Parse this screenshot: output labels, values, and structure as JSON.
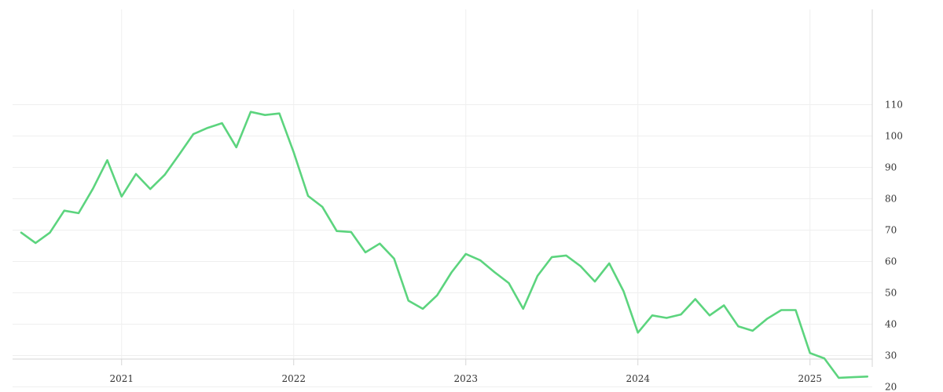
{
  "chart_data": {
    "type": "line",
    "title": "",
    "xlabel": "",
    "ylabel": "",
    "y_axis_position": "right",
    "grid": true,
    "xlim": [
      "2020-06",
      "2025-05"
    ],
    "ylim": [
      9.5,
      120
    ],
    "x_ticks": [
      {
        "date": "2021-01",
        "label": "2021"
      },
      {
        "date": "2022-01",
        "label": "2022"
      },
      {
        "date": "2023-01",
        "label": "2023"
      },
      {
        "date": "2024-01",
        "label": "2024"
      },
      {
        "date": "2025-01",
        "label": "2025"
      }
    ],
    "y_ticks": [
      20,
      30,
      40,
      50,
      60,
      70,
      80,
      90,
      100,
      110
    ],
    "series": [
      {
        "color": "#5cd47e",
        "points": [
          [
            "2020-06",
            69.2
          ],
          [
            "2020-07",
            65.9
          ],
          [
            "2020-08",
            69.2
          ],
          [
            "2020-09",
            76.2
          ],
          [
            "2020-10",
            75.4
          ],
          [
            "2020-11",
            83.2
          ],
          [
            "2020-12",
            92.3
          ],
          [
            "2021-01",
            80.7
          ],
          [
            "2021-02",
            87.9
          ],
          [
            "2021-03",
            83.1
          ],
          [
            "2021-04",
            87.6
          ],
          [
            "2021-05",
            94.0
          ],
          [
            "2021-06",
            100.6
          ],
          [
            "2021-07",
            102.6
          ],
          [
            "2021-08",
            104.1
          ],
          [
            "2021-09",
            96.4
          ],
          [
            "2021-10",
            107.7
          ],
          [
            "2021-11",
            106.7
          ],
          [
            "2021-12",
            107.2
          ],
          [
            "2022-01",
            94.8
          ],
          [
            "2022-02",
            80.9
          ],
          [
            "2022-03",
            77.4
          ],
          [
            "2022-04",
            69.7
          ],
          [
            "2022-05",
            69.4
          ],
          [
            "2022-06",
            62.9
          ],
          [
            "2022-07",
            65.7
          ],
          [
            "2022-08",
            60.9
          ],
          [
            "2022-09",
            47.5
          ],
          [
            "2022-10",
            44.9
          ],
          [
            "2022-11",
            49.2
          ],
          [
            "2022-12",
            56.5
          ],
          [
            "2023-01",
            62.4
          ],
          [
            "2023-02",
            60.4
          ],
          [
            "2023-03",
            56.6
          ],
          [
            "2023-04",
            53.1
          ],
          [
            "2023-05",
            44.9
          ],
          [
            "2023-06",
            55.4
          ],
          [
            "2023-07",
            61.4
          ],
          [
            "2023-08",
            61.9
          ],
          [
            "2023-09",
            58.5
          ],
          [
            "2023-10",
            53.6
          ],
          [
            "2023-11",
            59.4
          ],
          [
            "2023-12",
            50.5
          ],
          [
            "2024-01",
            37.3
          ],
          [
            "2024-02",
            42.8
          ],
          [
            "2024-03",
            42.0
          ],
          [
            "2024-04",
            43.1
          ],
          [
            "2024-05",
            48.0
          ],
          [
            "2024-06",
            42.8
          ],
          [
            "2024-07",
            46.0
          ],
          [
            "2024-08",
            39.3
          ],
          [
            "2024-09",
            37.9
          ],
          [
            "2024-10",
            41.7
          ],
          [
            "2024-11",
            44.5
          ],
          [
            "2024-12",
            44.5
          ],
          [
            "2025-01",
            30.8
          ],
          [
            "2025-02",
            29.1
          ],
          [
            "2025-03",
            22.9
          ],
          [
            "2025-04",
            23.1
          ],
          [
            "2025-05",
            23.3
          ]
        ]
      }
    ]
  }
}
